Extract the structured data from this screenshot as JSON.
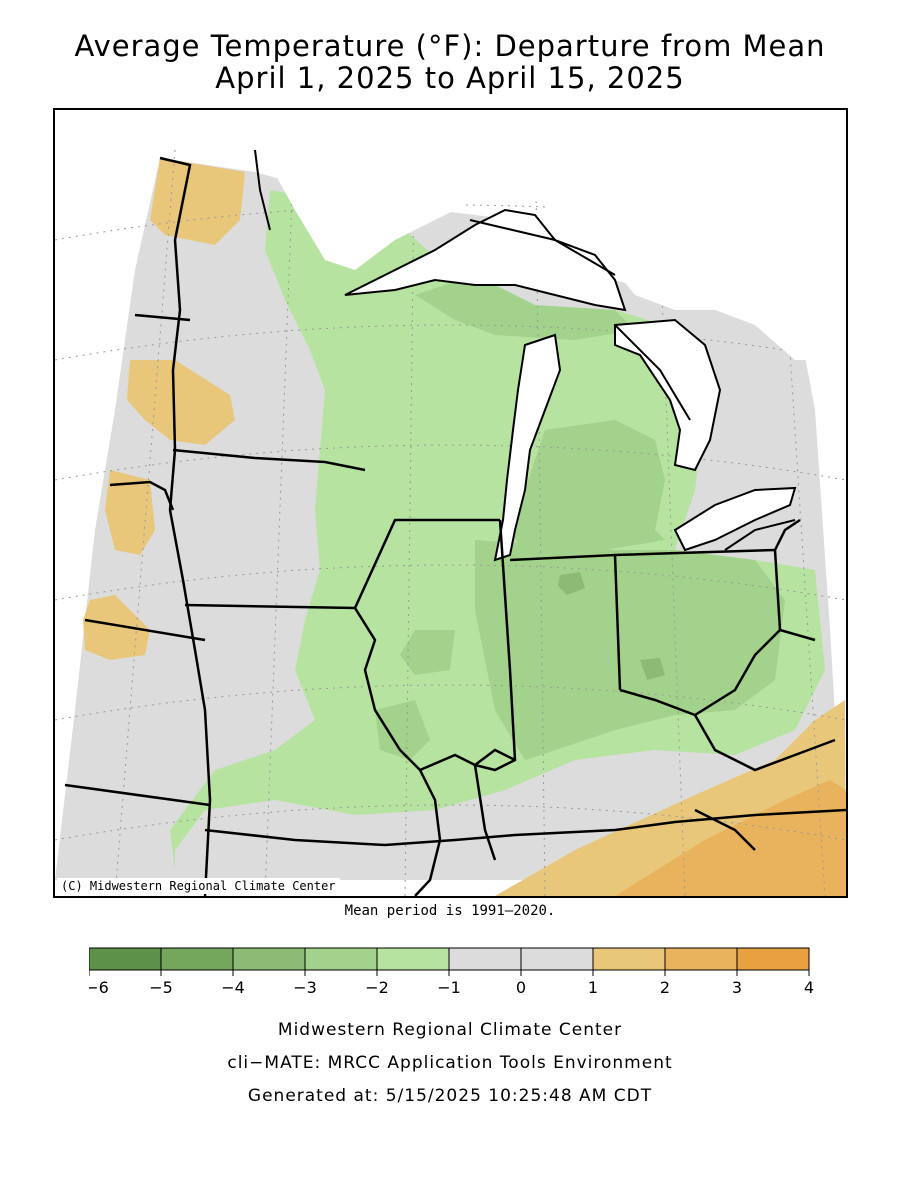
{
  "title": {
    "line1": "Average Temperature (°F): Departure from Mean",
    "line2": "April 1, 2025 to April 15, 2025"
  },
  "credit": "(C) Midwestern Regional Climate Center",
  "mean_period": "Mean period is 1991–2020.",
  "legend": {
    "bins": [
      {
        "min": -6,
        "max": -5,
        "color": "#5e9148"
      },
      {
        "min": -5,
        "max": -4,
        "color": "#74a65c"
      },
      {
        "min": -4,
        "max": -3,
        "color": "#8cbc74"
      },
      {
        "min": -3,
        "max": -2,
        "color": "#a3d28c"
      },
      {
        "min": -2,
        "max": -1,
        "color": "#b6e3a0"
      },
      {
        "min": -1,
        "max": 0,
        "color": "#dcdcdc"
      },
      {
        "min": 0,
        "max": 1,
        "color": "#dcdcdc"
      },
      {
        "min": 1,
        "max": 2,
        "color": "#e8c77a"
      },
      {
        "min": 2,
        "max": 3,
        "color": "#e8b35c"
      },
      {
        "min": 3,
        "max": 4,
        "color": "#e8a040"
      }
    ],
    "tick_labels": [
      "−6",
      "−5",
      "−4",
      "−3",
      "−2",
      "−1",
      "0",
      "1",
      "2",
      "3",
      "4"
    ]
  },
  "footer": {
    "line1": "Midwestern Regional Climate Center",
    "line2": "cli−MATE: MRCC Application Tools Environment",
    "line3": "Generated at: 5/15/2025 10:25:48 AM CDT"
  },
  "colors": {
    "water": "#ffffff",
    "border": "#000000",
    "graticule": "#999999"
  }
}
